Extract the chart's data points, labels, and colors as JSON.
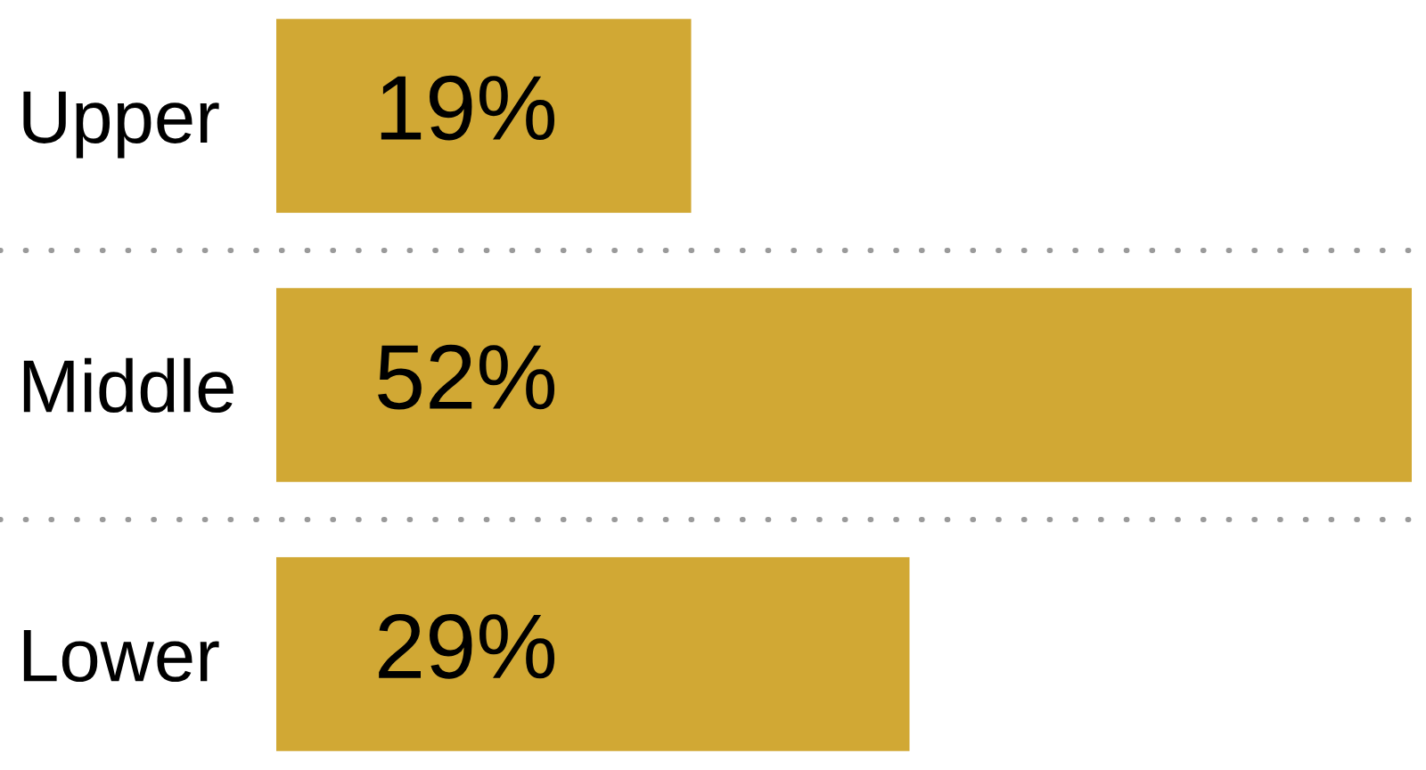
{
  "chart_data": {
    "type": "bar",
    "orientation": "horizontal",
    "categories": [
      "Upper",
      "Middle",
      "Lower"
    ],
    "values": [
      19,
      52,
      29
    ],
    "value_labels": [
      "19%",
      "52%",
      "29%"
    ],
    "color": "#d1a834",
    "grid": "y",
    "tick_labels": "y"
  }
}
